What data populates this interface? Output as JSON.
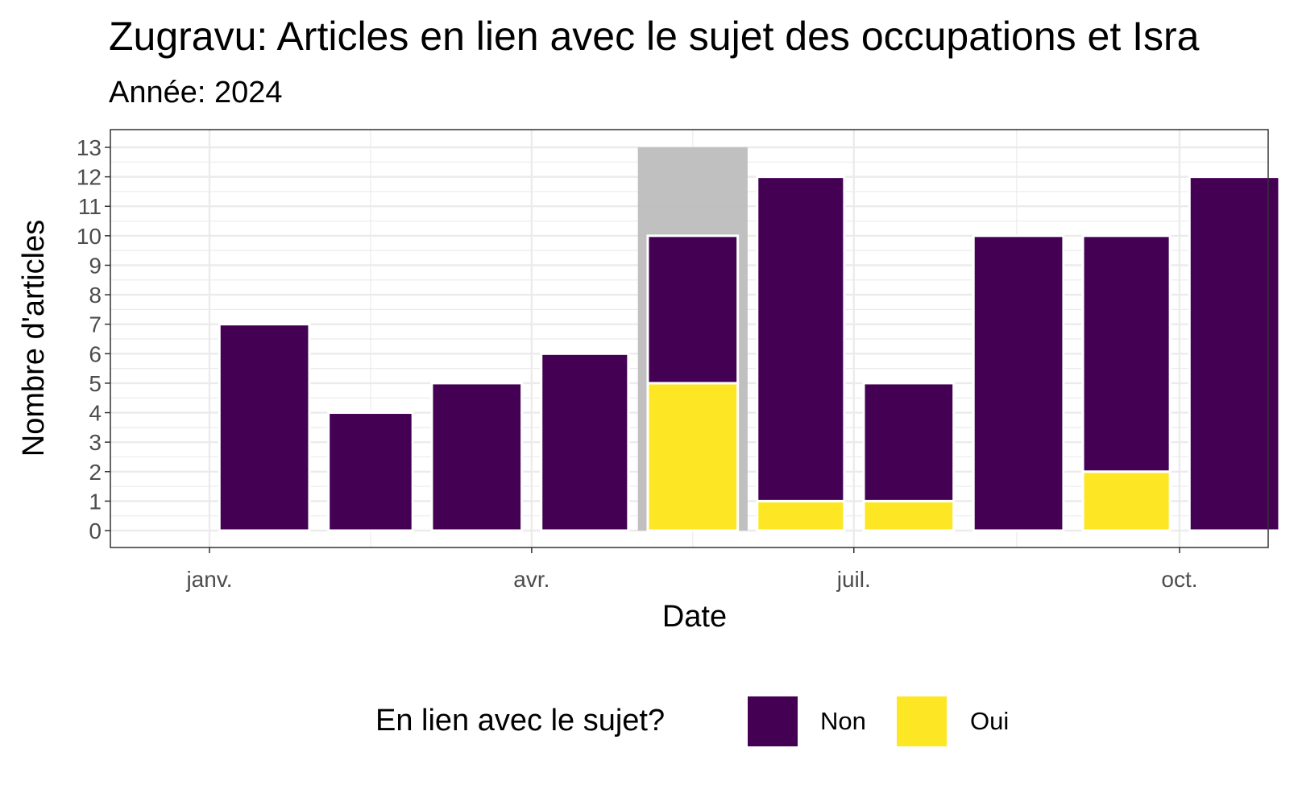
{
  "chart_data": {
    "type": "bar",
    "stacked": true,
    "title": "Zugravu: Articles en lien avec le sujet des occupations et Isra",
    "subtitle": "Année: 2024",
    "xlabel": "Date",
    "ylabel": "Nombre d'articles",
    "categories": [
      "2024-01",
      "2024-02",
      "2024-03",
      "2024-04",
      "2024-05",
      "2024-06",
      "2024-07",
      "2024-08",
      "2024-09",
      "2024-10"
    ],
    "x_tick_labels": [
      {
        "category": "2024-01",
        "label": "janv."
      },
      {
        "category": "2024-04",
        "label": "avr."
      },
      {
        "category": "2024-07",
        "label": "juil."
      },
      {
        "category": "2024-10",
        "label": "oct."
      }
    ],
    "series": [
      {
        "name": "Oui",
        "color": "#FDE725",
        "values": [
          0,
          0,
          0,
          0,
          5,
          1,
          1,
          0,
          2,
          0
        ]
      },
      {
        "name": "Non",
        "color": "#440154",
        "values": [
          7,
          4,
          5,
          6,
          5,
          11,
          4,
          10,
          8,
          12
        ]
      }
    ],
    "highlight": {
      "category": "2024-05",
      "value": 13,
      "color": "#bdbdbd"
    },
    "ylim": [
      0,
      13
    ],
    "yticks": [
      0,
      1,
      2,
      3,
      4,
      5,
      6,
      7,
      8,
      9,
      10,
      11,
      12,
      13
    ],
    "grid": true,
    "legend": {
      "title": "En lien avec le sujet?",
      "position": "bottom",
      "order": [
        "Non",
        "Oui"
      ]
    }
  }
}
